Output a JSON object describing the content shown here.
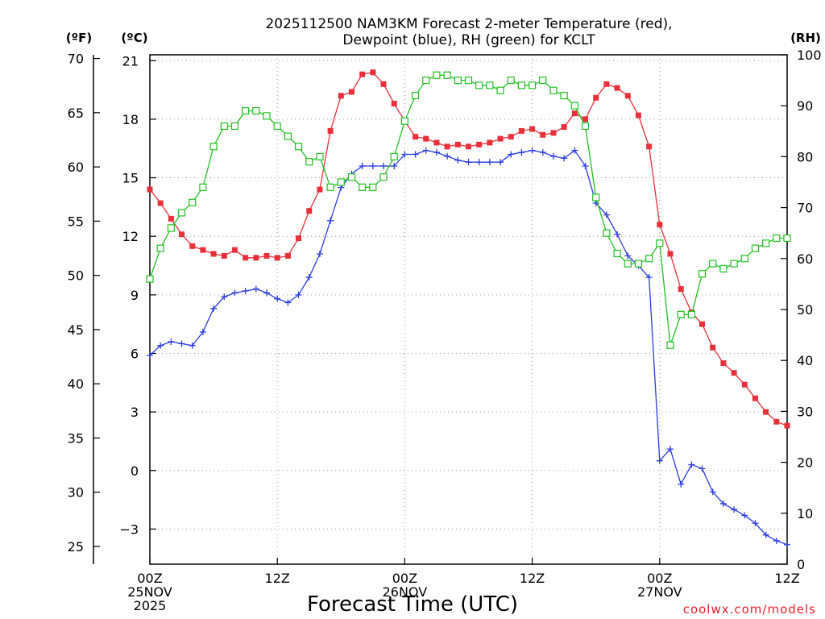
{
  "chart_data": {
    "type": "line",
    "title_lines": [
      "2025112500 NAM3KM Forecast 2-meter Temperature (red),",
      "Dewpoint (blue), RH (green) for KCLT"
    ],
    "xlabel": "Forecast Time (UTC)",
    "credit": "coolwx.com/models",
    "unit_labels": {
      "fahrenheit": "(ºF)",
      "celsius": "(ºC)",
      "rh": "(RH)"
    },
    "x_range_hours": [
      0,
      60
    ],
    "x_ticks": [
      {
        "hour": 0,
        "lines": [
          "00Z",
          "25NOV",
          "2025"
        ]
      },
      {
        "hour": 12,
        "lines": [
          "12Z"
        ]
      },
      {
        "hour": 24,
        "lines": [
          "00Z",
          "26NOV"
        ]
      },
      {
        "hour": 36,
        "lines": [
          "12Z"
        ]
      },
      {
        "hour": 48,
        "lines": [
          "00Z",
          "27NOV"
        ]
      },
      {
        "hour": 60,
        "lines": [
          "12Z"
        ]
      }
    ],
    "y_celsius": {
      "range": [
        -4.8,
        21.3
      ],
      "ticks": [
        21,
        18,
        15,
        12,
        9,
        6,
        3,
        0,
        -3
      ],
      "tick_labels": [
        "21",
        "18",
        "15",
        "12",
        "9",
        "6",
        "3",
        "0",
        "−3"
      ]
    },
    "y_fahrenheit": {
      "ticks": [
        70,
        65,
        60,
        55,
        50,
        45,
        40,
        35,
        30,
        25
      ],
      "tick_labels": [
        "70",
        "65",
        "60",
        "55",
        "50",
        "45",
        "40",
        "35",
        "30",
        "25"
      ]
    },
    "y_rh": {
      "range": [
        0,
        100
      ],
      "ticks": [
        100,
        90,
        80,
        70,
        60,
        50,
        40,
        30,
        20,
        10,
        0
      ],
      "tick_labels": [
        "100",
        "90",
        "80",
        "70",
        "60",
        "50",
        "40",
        "30",
        "20",
        "10",
        "0"
      ]
    },
    "grid": true,
    "series": [
      {
        "name": "2-meter Temperature",
        "unit": "C",
        "axis": "celsius",
        "color": "#e8303a",
        "marker": "filled-square",
        "values": [
          14.4,
          13.7,
          12.9,
          12.1,
          11.5,
          11.3,
          11.1,
          11.0,
          11.3,
          10.9,
          10.9,
          11.0,
          10.9,
          11.0,
          11.9,
          13.3,
          14.4,
          17.4,
          19.2,
          19.4,
          20.3,
          20.4,
          19.8,
          18.8,
          17.9,
          17.1,
          17.0,
          16.8,
          16.6,
          16.7,
          16.6,
          16.7,
          16.8,
          17.0,
          17.1,
          17.4,
          17.5,
          17.2,
          17.3,
          17.6,
          18.3,
          18.0,
          19.1,
          19.8,
          19.6,
          19.2,
          18.2,
          16.6,
          12.6,
          11.1,
          9.3,
          8.1,
          7.5,
          6.3,
          5.5,
          5.0,
          4.4,
          3.7,
          3.0,
          2.5,
          2.3
        ]
      },
      {
        "name": "Dewpoint",
        "unit": "C",
        "axis": "celsius",
        "color": "#2a3de0",
        "marker": "plus",
        "values": [
          5.9,
          6.4,
          6.6,
          6.5,
          6.4,
          7.1,
          8.3,
          8.9,
          9.1,
          9.2,
          9.3,
          9.1,
          8.8,
          8.6,
          9.0,
          9.9,
          11.1,
          12.8,
          14.5,
          15.2,
          15.6,
          15.6,
          15.6,
          15.6,
          16.2,
          16.2,
          16.4,
          16.3,
          16.1,
          15.9,
          15.8,
          15.8,
          15.8,
          15.8,
          16.2,
          16.3,
          16.4,
          16.3,
          16.1,
          16.0,
          16.4,
          15.6,
          13.7,
          13.1,
          12.1,
          11.0,
          10.5,
          9.9,
          0.5,
          1.1,
          -0.7,
          0.3,
          0.1,
          -1.1,
          -1.7,
          -2.0,
          -2.3,
          -2.7,
          -3.3,
          -3.6,
          -3.8
        ]
      },
      {
        "name": "Relative Humidity",
        "unit": "%",
        "axis": "rh",
        "color": "#22c022",
        "marker": "open-square",
        "values": [
          56,
          62,
          66,
          69,
          71,
          74,
          82,
          86,
          86,
          89,
          89,
          88,
          86,
          84,
          82,
          79,
          80,
          74,
          75,
          76,
          74,
          74,
          76,
          80,
          87,
          92,
          95,
          96,
          96,
          95,
          95,
          94,
          94,
          93,
          95,
          94,
          94,
          95,
          93,
          92,
          90,
          86,
          72,
          65,
          61,
          59,
          59,
          60,
          63,
          43,
          49,
          49,
          57,
          59,
          58,
          59,
          60,
          62,
          63,
          64,
          64
        ]
      }
    ]
  }
}
